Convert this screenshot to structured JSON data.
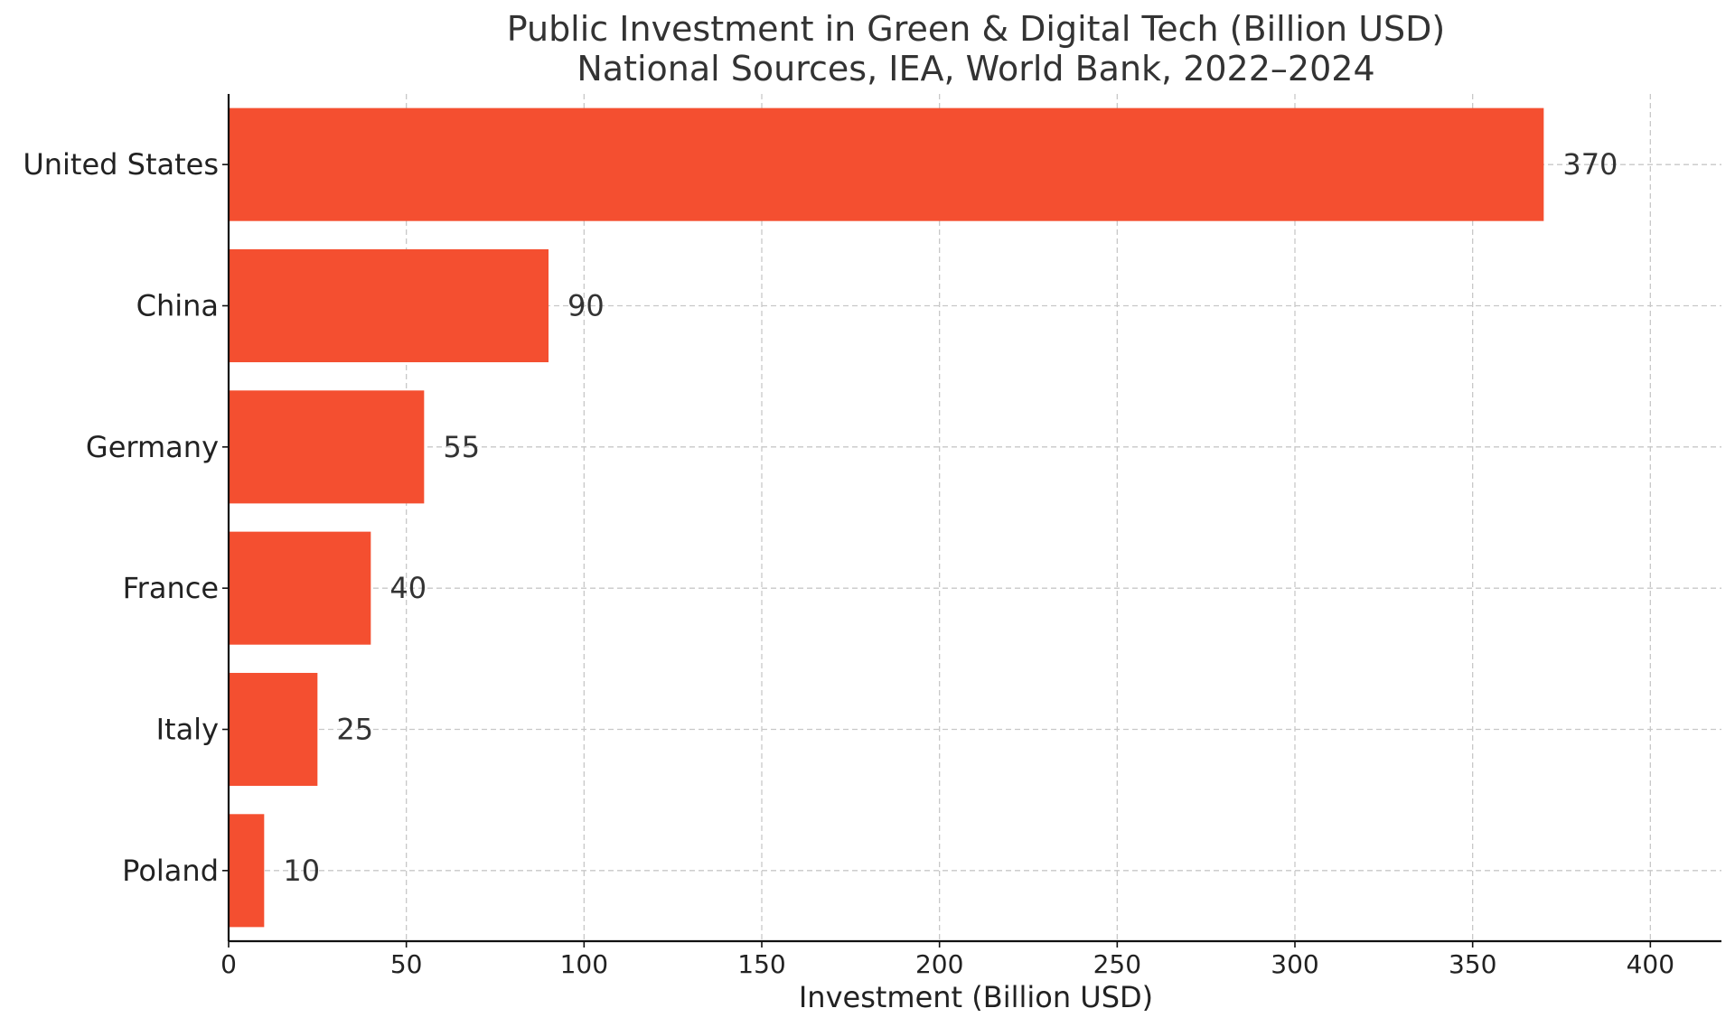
{
  "chart_data": {
    "type": "bar",
    "orientation": "horizontal",
    "title": "Public Investment in Green & Digital Tech (Billion USD)",
    "subtitle": "National Sources, IEA, World Bank, 2022–2024",
    "xlabel": "Investment (Billion USD)",
    "ylabel": "",
    "categories": [
      "United States",
      "China",
      "Germany",
      "France",
      "Italy",
      "Poland"
    ],
    "values": [
      370,
      90,
      55,
      40,
      25,
      10
    ],
    "value_labels": [
      "370",
      "90",
      "55",
      "40",
      "25",
      "10"
    ],
    "xlim": [
      0,
      420
    ],
    "x_ticks": [
      0,
      50,
      100,
      150,
      200,
      250,
      300,
      350,
      400
    ],
    "x_tick_labels": [
      "0",
      "50",
      "100",
      "150",
      "200",
      "250",
      "300",
      "350",
      "400"
    ],
    "grid": true,
    "grid_style": "dashed",
    "bar_color": "#f44f30",
    "legend": "none"
  }
}
